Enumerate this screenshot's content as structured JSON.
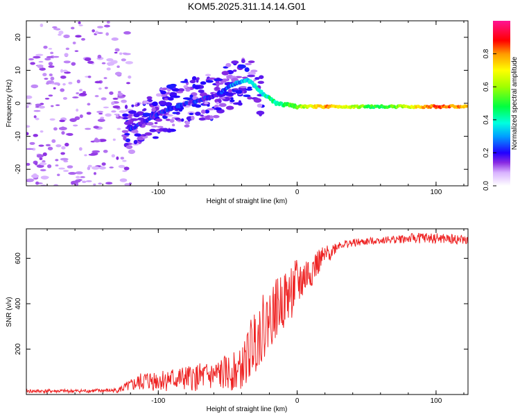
{
  "title": "KOM5.2025.311.14.14.G01",
  "chart_data": [
    {
      "type": "heatmap",
      "xlabel": "Height of straight line (km)",
      "ylabel": "Frequency (Hz)",
      "xlim": [
        -195,
        123
      ],
      "ylim": [
        -25,
        25
      ],
      "xticks": [
        -100,
        0,
        100
      ],
      "yticks": [
        -20,
        -10,
        0,
        10,
        20
      ],
      "colorbar": {
        "label": "Normalized spectral amplitude",
        "range": [
          0,
          1
        ],
        "ticks": [
          0.0,
          0.2,
          0.4,
          0.6,
          0.8
        ]
      },
      "ridge": [
        {
          "x": -120,
          "freq": -8
        },
        {
          "x": -100,
          "freq": -3
        },
        {
          "x": -80,
          "freq": 0
        },
        {
          "x": -60,
          "freq": 2
        },
        {
          "x": -45,
          "freq": 6
        },
        {
          "x": -35,
          "freq": 7
        },
        {
          "x": -25,
          "freq": 3
        },
        {
          "x": -15,
          "freq": 0
        },
        {
          "x": 0,
          "freq": -1
        },
        {
          "x": 20,
          "freq": -1
        },
        {
          "x": 60,
          "freq": -1
        },
        {
          "x": 100,
          "freq": -1
        },
        {
          "x": 123,
          "freq": -1
        }
      ],
      "amplitude_along_ridge": [
        {
          "x": -120,
          "amp": 0.2
        },
        {
          "x": -60,
          "amp": 0.2
        },
        {
          "x": -35,
          "amp": 0.35
        },
        {
          "x": -10,
          "amp": 0.45
        },
        {
          "x": 20,
          "amp": 0.8
        },
        {
          "x": 60,
          "amp": 0.45
        },
        {
          "x": 100,
          "amp": 0.85
        },
        {
          "x": 123,
          "amp": 0.75
        }
      ]
    },
    {
      "type": "line",
      "xlabel": "Height of straight line (km)",
      "ylabel": "SNR (v/v)",
      "xlim": [
        -195,
        123
      ],
      "ylim": [
        0,
        730
      ],
      "xticks": [
        -100,
        0,
        100
      ],
      "yticks": [
        200,
        400,
        600
      ],
      "color": "#ee2222",
      "envelope": [
        {
          "x": -195,
          "mean": 15,
          "noise": 8
        },
        {
          "x": -160,
          "mean": 15,
          "noise": 8
        },
        {
          "x": -130,
          "mean": 18,
          "noise": 10
        },
        {
          "x": -110,
          "mean": 60,
          "noise": 45
        },
        {
          "x": -80,
          "mean": 70,
          "noise": 55
        },
        {
          "x": -60,
          "mean": 80,
          "noise": 70
        },
        {
          "x": -40,
          "mean": 110,
          "noise": 90
        },
        {
          "x": -30,
          "mean": 250,
          "noise": 150
        },
        {
          "x": -15,
          "mean": 380,
          "noise": 130
        },
        {
          "x": 0,
          "mean": 480,
          "noise": 120
        },
        {
          "x": 15,
          "mean": 580,
          "noise": 60
        },
        {
          "x": 30,
          "mean": 660,
          "noise": 20
        },
        {
          "x": 60,
          "mean": 680,
          "noise": 15
        },
        {
          "x": 90,
          "mean": 690,
          "noise": 25
        },
        {
          "x": 123,
          "mean": 680,
          "noise": 20
        }
      ]
    }
  ]
}
